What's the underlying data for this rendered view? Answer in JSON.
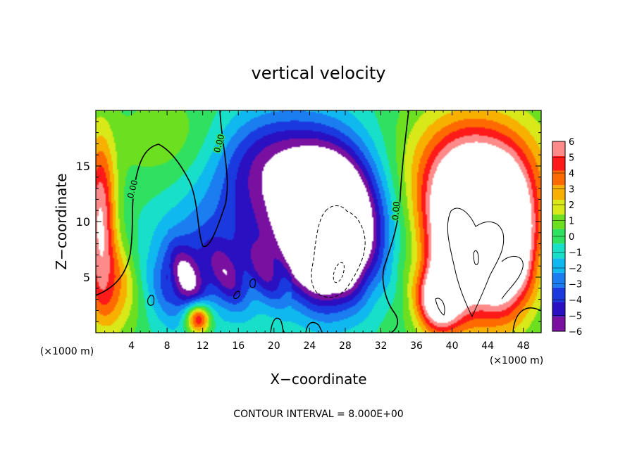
{
  "chart_data": {
    "type": "heatmap",
    "title": "vertical velocity",
    "xlabel": "X−coordinate",
    "ylabel": "Z−coordinate",
    "x_unit": "(×1000 m)",
    "x_unit_right": "(×1000 m)",
    "footer": "CONTOUR INTERVAL = 8.000E+00",
    "xlim": [
      0,
      50
    ],
    "ylim": [
      0,
      20
    ],
    "x_ticks": [
      4,
      8,
      12,
      16,
      20,
      24,
      28,
      32,
      36,
      40,
      44,
      48
    ],
    "x_tick_labels": [
      "4",
      "8",
      "12",
      "16",
      "20",
      "24",
      "28",
      "32",
      "36",
      "40",
      "44",
      "48"
    ],
    "y_ticks": [
      5,
      10,
      15
    ],
    "y_tick_labels": [
      "5",
      "10",
      "15"
    ],
    "colorbar": {
      "min": -6,
      "max": 6,
      "labels": [
        "6",
        "5",
        "4",
        "3",
        "2",
        "1",
        "0",
        "−1",
        "−2",
        "−3",
        "−4",
        "−5",
        "−6"
      ],
      "colors": [
        "#7a10a0",
        "#2a10c0",
        "#1a3ae0",
        "#1a7df0",
        "#10b8f0",
        "#18e0c8",
        "#30e060",
        "#6ce020",
        "#d8e818",
        "#f8b000",
        "#ff6a00",
        "#ff1a1a",
        "#ff8a8a"
      ],
      "above_max_color": "#ffffff"
    },
    "contour_labels": [
      "0.00",
      "0.00",
      "0.00"
    ],
    "field_features": [
      {
        "kind": "max",
        "x": 42,
        "z": 9,
        "value": 12,
        "note": "strong updraft core (white, above 6)"
      },
      {
        "kind": "min",
        "x": 26,
        "z": 8,
        "value": -12,
        "note": "strong downdraft core (white, below -6)"
      },
      {
        "kind": "max",
        "x": 0.5,
        "z": 11,
        "value": 5
      },
      {
        "kind": "max",
        "x": 11.5,
        "z": 1.3,
        "value": 5
      }
    ]
  }
}
